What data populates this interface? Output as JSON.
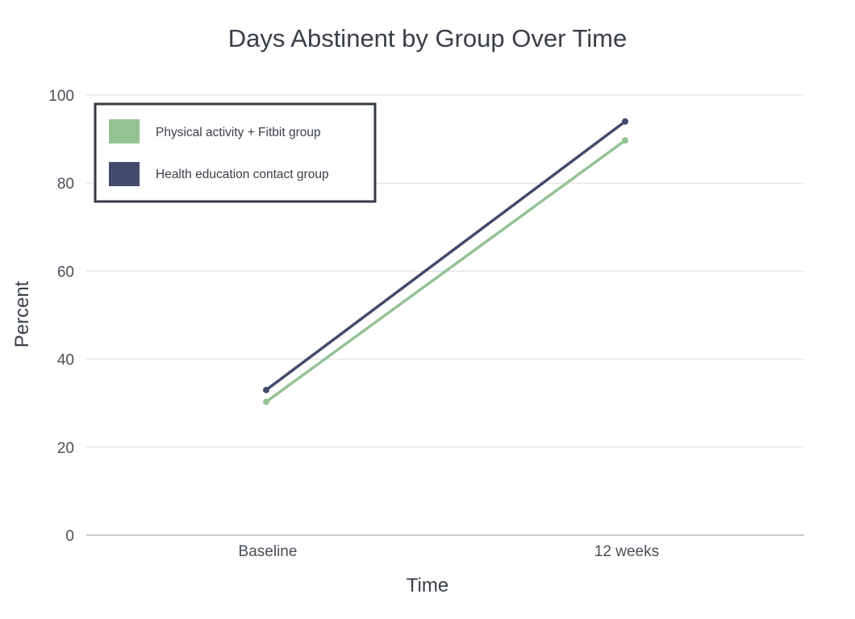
{
  "chart_data": {
    "type": "line",
    "title": "Days Abstinent by Group Over Time",
    "xlabel": "Time",
    "ylabel": "Percent",
    "categories": [
      "Baseline",
      "12 weeks"
    ],
    "ylim": [
      0,
      100
    ],
    "yticks": [
      "0",
      "20",
      "40",
      "60",
      "80",
      "100"
    ],
    "grid": true,
    "legend_position": "top-left",
    "series": [
      {
        "name": "Physical activity + Fitbit group",
        "values": [
          30.3,
          89.7
        ],
        "color": "#93c393"
      },
      {
        "name": "Health education contact group",
        "values": [
          33.0,
          94.0
        ],
        "color": "#424b6e"
      }
    ]
  }
}
